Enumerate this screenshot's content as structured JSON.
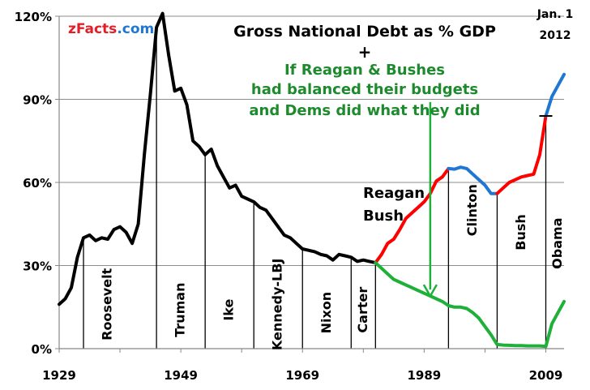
{
  "brand": {
    "name": "zFacts",
    "tld": ".com",
    "color_name": "#e41e26",
    "color_tld": "#1f77d2"
  },
  "title": "Gross National Debt  as % GDP",
  "plus": "+",
  "subtitle_lines": [
    "If Reagan & Bushes",
    "had balanced their budgets",
    "and Dems did what they did"
  ],
  "date_lines": [
    "Jan. 1",
    "2012"
  ],
  "reagan_label": [
    "Reagan",
    "Bush"
  ],
  "chart_data": {
    "type": "line",
    "xlim": [
      1929,
      2012
    ],
    "ylim": [
      0,
      120
    ],
    "x_ticks": [
      1929,
      1949,
      1969,
      1989,
      2009
    ],
    "y_ticks": [
      0,
      30,
      60,
      90,
      120
    ],
    "y_tick_labels": [
      "0%",
      "30%",
      "60%",
      "90%",
      "120%"
    ],
    "grid": "horizontal",
    "colors": {
      "actual": "#000000",
      "republican": "#ff0000",
      "democrat": "#1f77d2",
      "counterfactual": "#1fb03a",
      "arrow": "#1fb03a"
    },
    "series": [
      {
        "name": "",
        "role": "actual",
        "x": [
          1929,
          1930,
          1931,
          1932,
          1933,
          1934,
          1935,
          1936,
          1937,
          1938,
          1939,
          1940,
          1941,
          1942,
          1943,
          1944,
          1945,
          1946,
          1947,
          1948,
          1949,
          1950,
          1951,
          1952,
          1953,
          1954,
          1955,
          1956,
          1957,
          1958,
          1959,
          1960,
          1961,
          1962,
          1963,
          1964,
          1965,
          1966,
          1967,
          1968,
          1969,
          1970,
          1971,
          1972,
          1973,
          1974,
          1975,
          1976,
          1977,
          1978,
          1979,
          1980,
          1981
        ],
        "y": [
          16,
          18,
          22,
          33,
          40,
          41,
          39,
          40,
          39.5,
          43,
          44,
          42,
          38,
          45,
          70,
          92,
          116,
          121,
          106,
          93,
          94,
          88,
          75,
          73,
          70,
          72,
          66,
          62,
          58,
          59,
          55,
          54,
          53,
          51,
          50,
          47,
          44,
          41,
          40,
          38,
          36,
          35.5,
          35,
          34,
          33.5,
          32,
          34,
          33.5,
          33,
          31.5,
          32,
          31.5,
          31
        ]
      },
      {
        "name": "",
        "role": "reagan-bush1",
        "x": [
          1981,
          1982,
          1983,
          1984,
          1985,
          1986,
          1987,
          1988,
          1989,
          1990,
          1991,
          1992,
          1993
        ],
        "y": [
          31,
          34,
          38,
          39.5,
          43,
          47,
          49,
          51,
          53,
          56,
          60.5,
          62,
          65
        ]
      },
      {
        "name": "",
        "role": "clinton",
        "x": [
          1993,
          1994,
          1995,
          1996,
          1997,
          1998,
          1999,
          2000,
          2001
        ],
        "y": [
          65,
          64.8,
          65.5,
          65,
          63,
          61,
          59,
          56,
          56
        ]
      },
      {
        "name": "",
        "role": "bush2",
        "x": [
          2001,
          2002,
          2003,
          2004,
          2005,
          2006,
          2007,
          2008,
          2009
        ],
        "y": [
          56,
          58,
          60,
          61,
          62,
          62.5,
          63,
          70,
          84
        ]
      },
      {
        "name": "",
        "role": "obama",
        "x": [
          2009,
          2010,
          2011,
          2012
        ],
        "y": [
          84,
          91,
          95,
          99
        ]
      },
      {
        "name": "",
        "role": "counterfactual",
        "x": [
          1981,
          1982,
          1983,
          1984,
          1985,
          1986,
          1987,
          1988,
          1989,
          1990,
          1991,
          1992,
          1993,
          1994,
          1995,
          1996,
          1997,
          1998,
          1999,
          2000,
          2001,
          2002,
          2003,
          2004,
          2005,
          2006,
          2007,
          2008,
          2009,
          2010,
          2011,
          2012
        ],
        "y": [
          31,
          29,
          27,
          25,
          24,
          23,
          22,
          21,
          20,
          19,
          18,
          17,
          15.5,
          15,
          15,
          14.5,
          13,
          11,
          8,
          5,
          1.5,
          1.3,
          1.2,
          1.1,
          1.1,
          1.0,
          1.0,
          1.0,
          0.8,
          9,
          13,
          17
        ]
      }
    ],
    "presidents": [
      {
        "name": "Roosevelt",
        "start": 1933
      },
      {
        "name": "Truman",
        "start": 1945
      },
      {
        "name": "Ike",
        "start": 1953
      },
      {
        "name": "Kennedy-LBJ",
        "start": 1961
      },
      {
        "name": "Nixon",
        "start": 1969
      },
      {
        "name": "Carter",
        "start": 1977
      },
      {
        "name": "Clinton",
        "start": 1993
      },
      {
        "name": "Bush",
        "start": 2001
      },
      {
        "name": "Obama",
        "start": 2009
      }
    ],
    "reagan_start": 1981,
    "arrow": {
      "x": 1990,
      "y_from": 89,
      "y_to": 19
    }
  }
}
